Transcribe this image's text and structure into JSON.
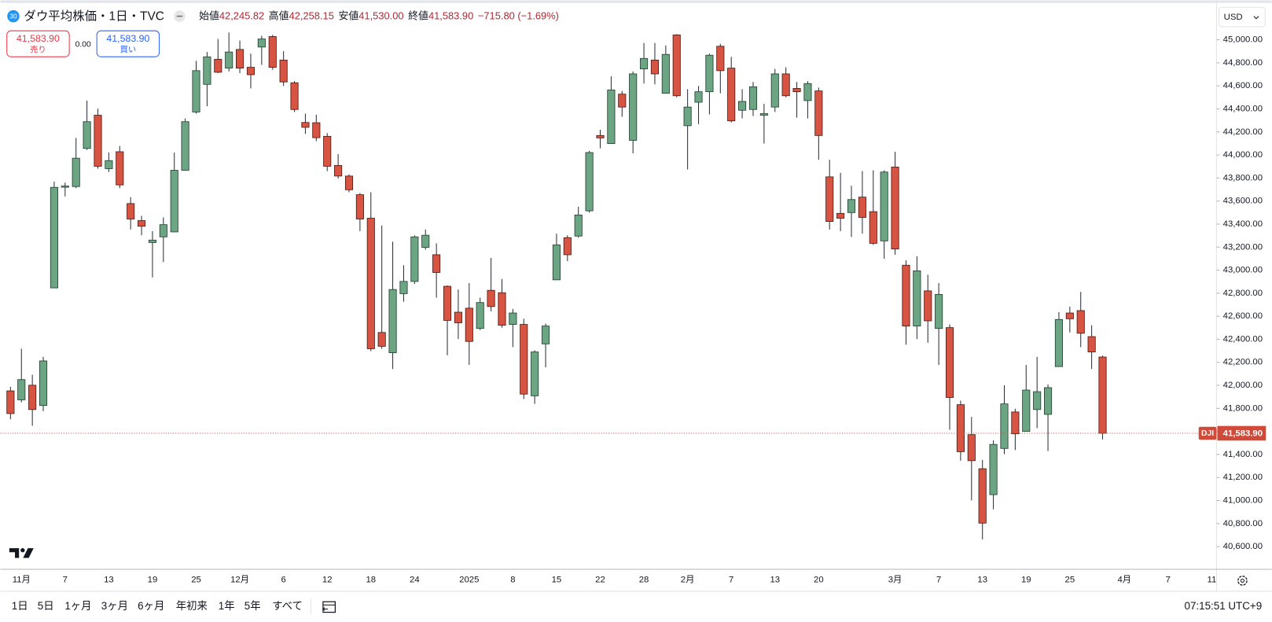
{
  "header": {
    "badge": "30",
    "title": "ダウ平均株価・1日・TVC",
    "open_label": "始値",
    "open": "42,245.82",
    "high_label": "高値",
    "high": "42,258.15",
    "low_label": "安値",
    "low": "41,530.00",
    "close_label": "終値",
    "close": "41,583.90",
    "change": "−715.80 (−1.69%)"
  },
  "trade": {
    "sell_price": "41,583.90",
    "sell_label": "売り",
    "spread": "0.00",
    "buy_price": "41,583.90",
    "buy_label": "買い"
  },
  "currency": "USD",
  "chart_data": {
    "type": "candlestick",
    "categories": [
      null,
      "11月",
      null,
      null,
      null,
      "7",
      null,
      null,
      null,
      "13",
      null,
      null,
      null,
      "19",
      null,
      null,
      null,
      "25",
      null,
      null,
      null,
      "12月",
      null,
      null,
      null,
      "6",
      null,
      null,
      null,
      "12",
      null,
      null,
      null,
      "18",
      null,
      null,
      null,
      "24",
      null,
      null,
      null,
      null,
      "2025",
      null,
      null,
      null,
      "8",
      null,
      null,
      null,
      "15",
      null,
      null,
      null,
      "22",
      null,
      null,
      null,
      "28",
      null,
      null,
      null,
      "2月",
      null,
      null,
      null,
      "7",
      null,
      null,
      null,
      "13",
      null,
      null,
      null,
      "20",
      null,
      null,
      null,
      null,
      null,
      null,
      "3月",
      null,
      null,
      null,
      "7",
      null,
      null,
      null,
      "13",
      null,
      null,
      null,
      "19",
      null,
      null,
      null,
      "25",
      null,
      null,
      null,
      null,
      "4月",
      null,
      null,
      null,
      "7",
      null,
      null,
      null,
      "11"
    ],
    "open": [
      41952,
      41874,
      42001,
      41825,
      42846,
      43720,
      43726,
      44057,
      44345,
      43881,
      44028,
      43578,
      43430,
      43240,
      43289,
      43332,
      43867,
      44373,
      44613,
      44831,
      44754,
      44916,
      44761,
      44937,
      45028,
      44824,
      44627,
      44282,
      44280,
      44162,
      43909,
      43817,
      43655,
      43451,
      42459,
      42283,
      42796,
      42902,
      43198,
      43134,
      42860,
      42635,
      42670,
      42494,
      42825,
      42804,
      42529,
      42529,
      41909,
      42360,
      42916,
      43282,
      43296,
      43515,
      44169,
      44099,
      44528,
      44127,
      44747,
      44824,
      44535,
      45042,
      44254,
      44458,
      44549,
      44944,
      44754,
      44388,
      44395,
      44345,
      44416,
      44704,
      44578,
      44472,
      44556,
      43810,
      43493,
      43500,
      43634,
      43508,
      43254,
      43895,
      43043,
      42515,
      42820,
      42494,
      42501,
      41832,
      41572,
      41276,
      41051,
      41452,
      41769,
      41600,
      41790,
      41748,
      42163,
      42628,
      42649,
      42423,
      42245.82,
      null,
      null,
      null,
      null,
      null,
      null,
      null,
      null,
      null,
      null
    ],
    "high": [
      41987,
      42318,
      42092,
      42247,
      43768,
      43760,
      44148,
      44472,
      44402,
      44021,
      44078,
      43634,
      43472,
      43339,
      43458,
      44021,
      44317,
      44817,
      44894,
      45007,
      45063,
      44993,
      44880,
      45035,
      45042,
      44901,
      44641,
      44359,
      44350,
      44190,
      44007,
      43831,
      43669,
      43676,
      43388,
      43247,
      43043,
      43303,
      43353,
      43233,
      42867,
      42832,
      42888,
      42761,
      43106,
      42923,
      42663,
      42578,
      42304,
      42536,
      43317,
      43303,
      43550,
      44036,
      44219,
      44683,
      44556,
      44725,
      44972,
      44972,
      44951,
      45049,
      44571,
      44599,
      44880,
      44965,
      44852,
      44571,
      44634,
      44444,
      44747,
      44761,
      44634,
      44641,
      44585,
      43958,
      43845,
      43733,
      43860,
      43867,
      43867,
      44028,
      43085,
      43120,
      42960,
      42888,
      42529,
      41867,
      41726,
      41353,
      41522,
      42001,
      41797,
      42177,
      42247,
      42008,
      42635,
      42684,
      42811,
      42522,
      42258.15,
      null,
      null,
      null,
      null,
      null,
      null,
      null,
      null,
      null,
      null
    ],
    "low": [
      41705,
      41853,
      41649,
      41776,
      42846,
      43640,
      43712,
      44043,
      43881,
      43852,
      43712,
      43353,
      43303,
      42937,
      43071,
      43330,
      43867,
      44359,
      44423,
      44711,
      44725,
      44711,
      44578,
      44782,
      44740,
      44599,
      44373,
      44183,
      44120,
      43860,
      43796,
      43676,
      43339,
      42297,
      42318,
      42142,
      42726,
      42881,
      43177,
      42761,
      42261,
      42402,
      42177,
      42480,
      42642,
      42501,
      42332,
      41881,
      41839,
      42156,
      42916,
      43078,
      43282,
      43500,
      44057,
      44099,
      44331,
      44014,
      44620,
      44613,
      44535,
      44500,
      43874,
      44268,
      44352,
      44535,
      44282,
      44317,
      44338,
      44099,
      44373,
      44500,
      44324,
      44317,
      43958,
      43353,
      43339,
      43289,
      43317,
      43219,
      43099,
      43134,
      42353,
      42402,
      42370,
      42177,
      41614,
      41346,
      41001,
      40663,
      40924,
      41403,
      41438,
      41600,
      41628,
      41430,
      42163,
      42459,
      42332,
      42142,
      41530,
      null,
      null,
      null,
      null,
      null,
      null,
      null,
      null,
      null,
      null
    ],
    "close": [
      41755,
      42050,
      41790,
      42212,
      43719,
      43730,
      43972,
      44289,
      43902,
      43951,
      43740,
      43444,
      43381,
      43261,
      43395,
      43867,
      44289,
      44732,
      44852,
      44718,
      44894,
      44754,
      44697,
      45007,
      44761,
      44634,
      44395,
      44240,
      44150,
      43902,
      43817,
      43698,
      43444,
      42318,
      42339,
      42832,
      42902,
      43289,
      43303,
      42980,
      42564,
      42543,
      42381,
      42719,
      42684,
      42522,
      42628,
      41924,
      42290,
      42515,
      43219,
      43134,
      43479,
      44021,
      44148,
      44564,
      44416,
      44704,
      44838,
      44704,
      44873,
      44514,
      44416,
      44549,
      44866,
      44732,
      44296,
      44465,
      44592,
      44359,
      44704,
      44514,
      44549,
      44620,
      44169,
      43423,
      43451,
      43613,
      43458,
      43233,
      43852,
      43184,
      42515,
      42994,
      42560,
      42789,
      41895,
      41424,
      41346,
      40804,
      41487,
      41839,
      41579,
      41959,
      41945,
      41980,
      42571,
      42578,
      42452,
      42290,
      41583.9,
      null,
      null,
      null,
      null,
      null,
      null,
      null,
      null,
      null,
      null
    ],
    "up_color": "#6ba583",
    "down_color": "#d75442",
    "ylim": [
      40403,
      45275
    ],
    "yticks": [
      {
        "value": 40600,
        "label": "40,600.00"
      },
      {
        "value": 40800,
        "label": "40,800.00"
      },
      {
        "value": 41000,
        "label": "41,000.00"
      },
      {
        "value": 41200,
        "label": "41,200.00"
      },
      {
        "value": 41400,
        "label": "41,400.00"
      },
      {
        "value": 41600,
        "label": "41,600.00"
      },
      {
        "value": 41800,
        "label": "41,800.00"
      },
      {
        "value": 42000,
        "label": "42,000.00"
      },
      {
        "value": 42200,
        "label": "42,200.00"
      },
      {
        "value": 42400,
        "label": "42,400.00"
      },
      {
        "value": 42600,
        "label": "42,600.00"
      },
      {
        "value": 42800,
        "label": "42,800.00"
      },
      {
        "value": 43000,
        "label": "43,000.00"
      },
      {
        "value": 43200,
        "label": "43,200.00"
      },
      {
        "value": 43400,
        "label": "43,400.00"
      },
      {
        "value": 43600,
        "label": "43,600.00"
      },
      {
        "value": 43800,
        "label": "43,800.00"
      },
      {
        "value": 44000,
        "label": "44,000.00"
      },
      {
        "value": 44200,
        "label": "44,200.00"
      },
      {
        "value": 44400,
        "label": "44,400.00"
      },
      {
        "value": 44600,
        "label": "44,600.00"
      },
      {
        "value": 44800,
        "label": "44,800.00"
      },
      {
        "value": 45000,
        "label": "45,000.00"
      }
    ],
    "last_price": {
      "symbol": "DJI",
      "value": 41583.9,
      "label": "41,583.90"
    }
  },
  "toolbar": {
    "ranges": [
      "1日",
      "5日",
      "1ヶ月",
      "3ヶ月",
      "6ヶ月",
      "年初来",
      "1年",
      "5年",
      "すべて"
    ],
    "time": "07:15:51 UTC+9"
  }
}
